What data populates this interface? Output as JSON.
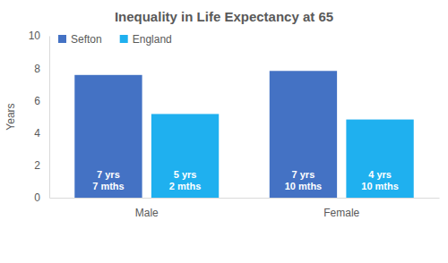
{
  "chart_data": {
    "type": "bar",
    "title": "Inequality in Life Expectancy at 65",
    "y_label": "Years",
    "categories": [
      "Male",
      "Female"
    ],
    "series": [
      {
        "name": "Sefton",
        "color": "#4472c4",
        "values": [
          7.58,
          7.83
        ],
        "value_labels": [
          "7 yrs\n7 mths",
          "7 yrs\n10 mths"
        ]
      },
      {
        "name": "England",
        "color": "#1fb0ef",
        "values": [
          5.17,
          4.83
        ],
        "value_labels": [
          "5 yrs\n2 mths",
          "4 yrs\n10 mths"
        ]
      }
    ],
    "ylim": [
      0,
      10
    ],
    "yticks": [
      0,
      2,
      4,
      6,
      8,
      10
    ],
    "grid": false,
    "legend": "top-left",
    "data_labels": true
  }
}
